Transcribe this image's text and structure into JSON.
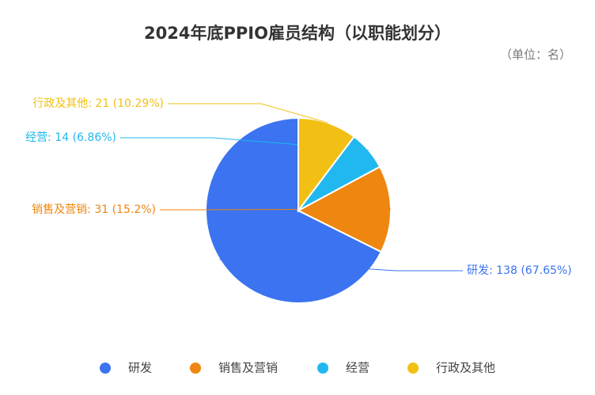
{
  "title": "2024年底PPIO雇员结构（以职能划分）",
  "unit_note": "（单位：名）",
  "chart_data": {
    "type": "pie",
    "title": "2024年底PPIO雇员结构（以职能划分）",
    "unit": "（单位：名）",
    "slices": [
      {
        "name": "研发",
        "value": 138,
        "percent": "67.65%",
        "label": "研发: 138 (67.65%)",
        "color": "#3b73f0"
      },
      {
        "name": "销售及营销",
        "value": 31,
        "percent": "15.2%",
        "label": "销售及营销: 31 (15.2%)",
        "color": "#ef860f"
      },
      {
        "name": "经营",
        "value": 14,
        "percent": "6.86%",
        "label": "经营: 14 (6.86%)",
        "color": "#21b8ef"
      },
      {
        "name": "行政及其他",
        "value": 21,
        "percent": "10.29%",
        "label": "行政及其他: 21 (10.29%)",
        "color": "#f2c014"
      }
    ],
    "legend_position": "bottom",
    "direction": "counterclockwise",
    "start_angle": "top"
  }
}
